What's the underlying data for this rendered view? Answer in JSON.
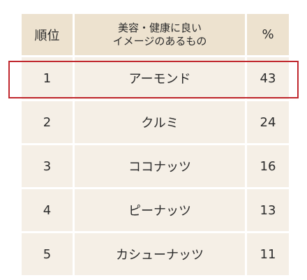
{
  "table": {
    "headers": {
      "rank": "順位",
      "item_line1": "美容・健康に良い",
      "item_line2": "イメージのあるもの",
      "percent": "%"
    },
    "rows": [
      {
        "rank": "1",
        "item": "アーモンド",
        "percent": "43"
      },
      {
        "rank": "2",
        "item": "クルミ",
        "percent": "24"
      },
      {
        "rank": "3",
        "item": "ココナッツ",
        "percent": "16"
      },
      {
        "rank": "4",
        "item": "ピーナッツ",
        "percent": "13"
      },
      {
        "rank": "5",
        "item": "カシューナッツ",
        "percent": "11"
      }
    ]
  },
  "colors": {
    "header_bg": "#ede2cf",
    "cell_bg": "#f5efe6",
    "highlight_border": "#c0272d"
  }
}
